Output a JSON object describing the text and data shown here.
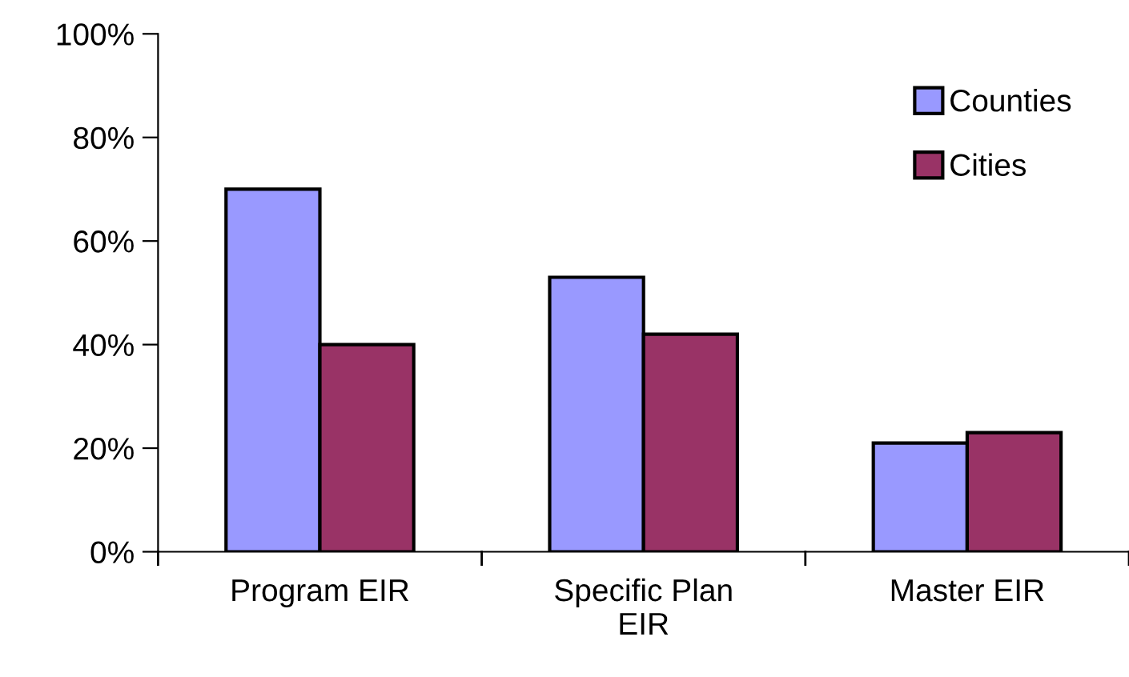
{
  "chart_data": {
    "type": "bar",
    "categories": [
      "Program EIR",
      "Specific Plan\nEIR",
      "Master EIR"
    ],
    "series": [
      {
        "name": "Counties",
        "color": "#9999ff",
        "values": [
          70,
          53,
          21
        ]
      },
      {
        "name": "Cities",
        "color": "#993366",
        "values": [
          40,
          42,
          23
        ]
      }
    ],
    "ylim": [
      0,
      100
    ],
    "yticks": [
      {
        "value": 0,
        "label": "0%"
      },
      {
        "value": 20,
        "label": "20%"
      },
      {
        "value": 40,
        "label": "40%"
      },
      {
        "value": 60,
        "label": "60%"
      },
      {
        "value": 80,
        "label": "80%"
      },
      {
        "value": 100,
        "label": "100%"
      }
    ],
    "grid": false,
    "legend": "top right"
  }
}
